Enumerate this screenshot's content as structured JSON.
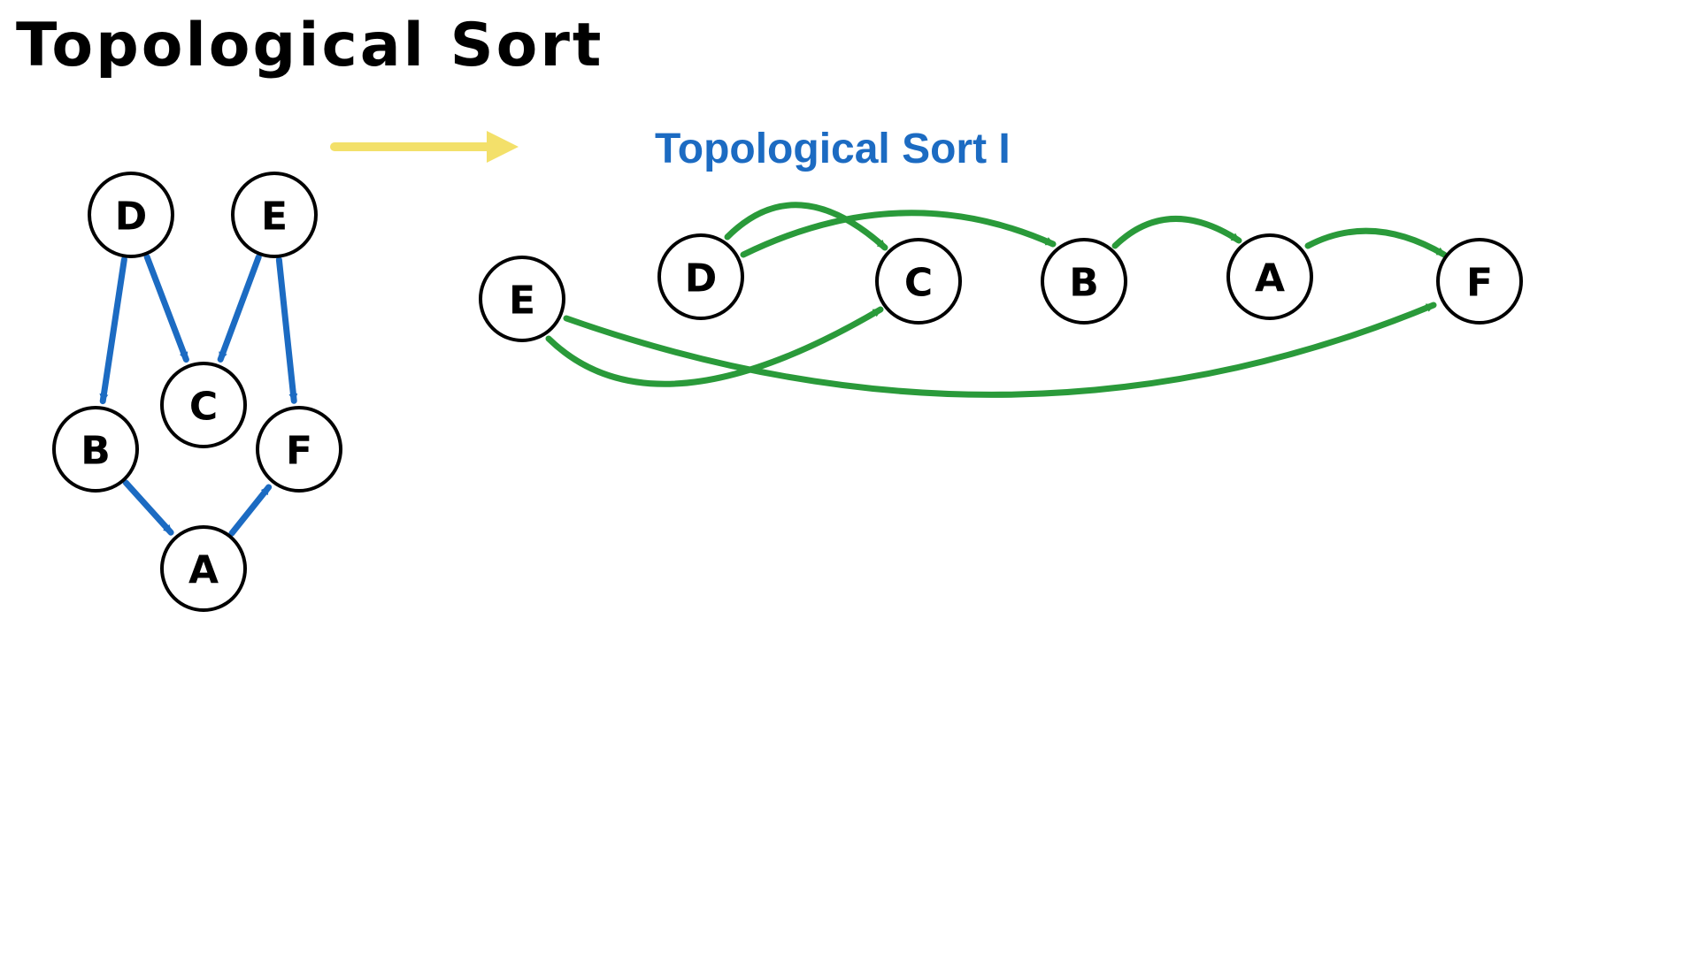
{
  "title": "Topological Sort",
  "subtitle": "Topological Sort I",
  "colors": {
    "input_edges": "#1c6bc2",
    "output_edges": "#2a9a3a",
    "transform_arrow": "#f3e06a",
    "subtitle": "#1c6bc2",
    "node_stroke": "#000000"
  },
  "input_graph": {
    "nodes": [
      "D",
      "E",
      "C",
      "B",
      "F",
      "A"
    ],
    "edges": [
      [
        "D",
        "B"
      ],
      [
        "D",
        "C"
      ],
      [
        "E",
        "C"
      ],
      [
        "E",
        "F"
      ],
      [
        "B",
        "A"
      ],
      [
        "A",
        "F"
      ]
    ]
  },
  "sorted_order": {
    "nodes": [
      "E",
      "D",
      "C",
      "B",
      "A",
      "F"
    ],
    "edges": [
      [
        "D",
        "C"
      ],
      [
        "D",
        "B"
      ],
      [
        "B",
        "A"
      ],
      [
        "A",
        "F"
      ],
      [
        "E",
        "C"
      ],
      [
        "E",
        "F"
      ]
    ]
  }
}
